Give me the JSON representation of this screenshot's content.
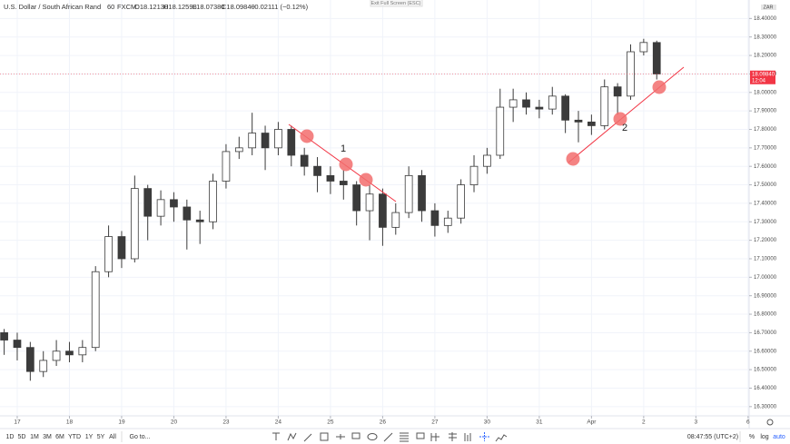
{
  "header": {
    "symbol": "U.S. Dollar / South African Rand",
    "interval": "60",
    "exchange": "FXCM",
    "open": "O18.12130",
    "high": "H18.12598",
    "low": "L18.07380",
    "close": "C18.09840",
    "change": "−0.02111 (−0.12%)",
    "exit_fullscreen": "Exit Full Screen (ESC)"
  },
  "chart_data": {
    "type": "candlestick",
    "x": [
      -0.25,
      0,
      0.25,
      0.5,
      0.75,
      1,
      1.25,
      1.5,
      1.75,
      2,
      2.25,
      2.5,
      2.75,
      3,
      3.25,
      3.5,
      3.75,
      4,
      4.25,
      4.5,
      4.75,
      5,
      5.25,
      5.5,
      5.75,
      6,
      6.25,
      6.5,
      6.75,
      7,
      7.25,
      7.5,
      7.75,
      8,
      8.25,
      8.5,
      8.75,
      9,
      9.25,
      9.5,
      9.75,
      10,
      10.25,
      10.5,
      10.75,
      11,
      11.25,
      11.5,
      11.75,
      12,
      12.25
    ],
    "open": [
      16.7,
      16.66,
      16.62,
      16.49,
      16.55,
      16.6,
      16.58,
      16.62,
      17.03,
      17.22,
      17.1,
      17.48,
      17.33,
      17.42,
      17.38,
      17.31,
      17.3,
      17.52,
      17.68,
      17.7,
      17.78,
      17.7,
      17.8,
      17.66,
      17.6,
      17.55,
      17.52,
      17.5,
      17.36,
      17.45,
      17.27,
      17.35,
      17.55,
      17.36,
      17.28,
      17.32,
      17.5,
      17.6,
      17.66,
      17.92,
      17.96,
      17.92,
      17.91,
      17.98,
      17.85,
      17.84,
      17.82,
      18.03,
      17.98,
      18.22,
      18.27
    ],
    "high": [
      16.72,
      16.7,
      16.65,
      16.6,
      16.66,
      16.65,
      16.66,
      17.06,
      17.28,
      17.25,
      17.55,
      17.5,
      17.47,
      17.46,
      17.42,
      17.36,
      17.56,
      17.72,
      17.76,
      17.89,
      17.82,
      17.84,
      17.82,
      17.7,
      17.65,
      17.6,
      17.58,
      17.52,
      17.5,
      17.48,
      17.4,
      17.6,
      17.58,
      17.4,
      17.36,
      17.53,
      17.66,
      17.7,
      18.02,
      18.02,
      18.0,
      17.96,
      18.03,
      17.99,
      17.9,
      17.88,
      18.07,
      18.05,
      18.26,
      18.29,
      18.28
    ],
    "low": [
      16.58,
      16.55,
      16.44,
      16.46,
      16.52,
      16.54,
      16.54,
      16.6,
      17.0,
      17.05,
      17.08,
      17.2,
      17.28,
      17.3,
      17.15,
      17.18,
      17.26,
      17.48,
      17.64,
      17.66,
      17.58,
      17.66,
      17.6,
      17.55,
      17.46,
      17.45,
      17.42,
      17.28,
      17.2,
      17.17,
      17.23,
      17.32,
      17.3,
      17.22,
      17.24,
      17.29,
      17.46,
      17.56,
      17.64,
      17.84,
      17.88,
      17.86,
      17.88,
      17.78,
      17.73,
      17.77,
      17.8,
      17.88,
      17.96,
      18.2,
      18.07
    ],
    "close": [
      16.66,
      16.62,
      16.49,
      16.55,
      16.6,
      16.58,
      16.62,
      17.03,
      17.22,
      17.1,
      17.48,
      17.33,
      17.42,
      17.38,
      17.31,
      17.3,
      17.52,
      17.68,
      17.7,
      17.78,
      17.7,
      17.8,
      17.66,
      17.6,
      17.55,
      17.52,
      17.5,
      17.36,
      17.45,
      17.27,
      17.35,
      17.55,
      17.36,
      17.28,
      17.32,
      17.5,
      17.6,
      17.66,
      17.92,
      17.96,
      17.92,
      17.91,
      17.98,
      17.85,
      17.84,
      17.82,
      18.03,
      17.98,
      18.22,
      18.27,
      18.1
    ],
    "up_color": "#ffffff",
    "down_color": "#3b3b3b",
    "wick_color": "#3b3b3b",
    "xlim": [
      -0.33,
      14.02
    ],
    "xticks": [
      {
        "value": 0,
        "label": "17"
      },
      {
        "value": 1,
        "label": "18"
      },
      {
        "value": 2,
        "label": "19"
      },
      {
        "value": 3,
        "label": "20"
      },
      {
        "value": 4,
        "label": "23"
      },
      {
        "value": 5,
        "label": "24"
      },
      {
        "value": 6,
        "label": "25"
      },
      {
        "value": 7,
        "label": "26"
      },
      {
        "value": 8,
        "label": "27"
      },
      {
        "value": 9,
        "label": "30"
      },
      {
        "value": 10,
        "label": "31"
      },
      {
        "value": 11,
        "label": "Apr"
      },
      {
        "value": 12,
        "label": "2"
      },
      {
        "value": 13,
        "label": "3"
      },
      {
        "value": 14,
        "label": "6"
      }
    ],
    "ylim": [
      16.25,
      18.5
    ],
    "yticks": [
      {
        "value": 16.3,
        "label": "16.30000"
      },
      {
        "value": 16.4,
        "label": "16.40000"
      },
      {
        "value": 16.5,
        "label": "16.50000"
      },
      {
        "value": 16.6,
        "label": "16.60000"
      },
      {
        "value": 16.7,
        "label": "16.70000"
      },
      {
        "value": 16.8,
        "label": "16.80000"
      },
      {
        "value": 16.9,
        "label": "16.90000"
      },
      {
        "value": 17.0,
        "label": "17.00000"
      },
      {
        "value": 17.1,
        "label": "17.10000"
      },
      {
        "value": 17.2,
        "label": "17.20000"
      },
      {
        "value": 17.3,
        "label": "17.30000"
      },
      {
        "value": 17.4,
        "label": "17.40000"
      },
      {
        "value": 17.5,
        "label": "17.50000"
      },
      {
        "value": 17.6,
        "label": "17.60000"
      },
      {
        "value": 17.7,
        "label": "17.70000"
      },
      {
        "value": 17.8,
        "label": "17.80000"
      },
      {
        "value": 17.9,
        "label": "17.90000"
      },
      {
        "value": 18.0,
        "label": "18.00000"
      },
      {
        "value": 18.1,
        "label": "18.10000"
      },
      {
        "value": 18.2,
        "label": "18.20000"
      },
      {
        "value": 18.3,
        "label": "18.30000"
      },
      {
        "value": 18.4,
        "label": "18.40000"
      }
    ],
    "grid": true,
    "currency": "ZAR",
    "last_price": {
      "value": 18.0984,
      "label": "18.09840"
    },
    "countdown": "12:04",
    "last_price_color": "#f23645",
    "annotations": [
      "1",
      "2"
    ]
  },
  "toolbar": {
    "ranges": [
      "1D",
      "5D",
      "1M",
      "3M",
      "6M",
      "YTD",
      "1Y",
      "5Y",
      "All"
    ],
    "goto": "Go to...",
    "time": "08:47:55 (UTC+2)",
    "percent": "%",
    "log": "log",
    "auto": "auto"
  }
}
